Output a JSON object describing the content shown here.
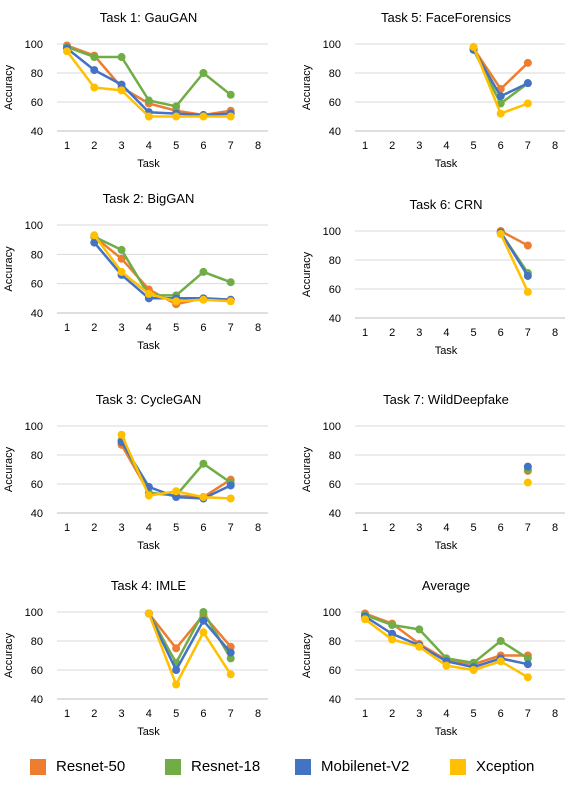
{
  "colors": {
    "Resnet-50": "#ED7D31",
    "Resnet-18": "#70AD47",
    "Mobilenet-V2": "#4472C4",
    "Xception": "#FFC000",
    "grid": "#d9d9d9",
    "axis": "#bfbfbf"
  },
  "legend": [
    "Resnet-50",
    "Resnet-18",
    "Mobilenet-V2",
    "Xception"
  ],
  "chart_data": [
    {
      "type": "line",
      "title": "Task 1: GauGAN",
      "xlabel": "Task",
      "ylabel": "Accuracy",
      "x": [
        1,
        2,
        3,
        4,
        5,
        6,
        7,
        8
      ],
      "ylim": [
        40,
        100
      ],
      "yticks": [
        40,
        60,
        80,
        100
      ],
      "grid": "horizontal",
      "series": [
        {
          "name": "Resnet-50",
          "values": [
            99,
            92,
            70,
            59,
            54,
            51,
            54,
            null
          ]
        },
        {
          "name": "Resnet-18",
          "values": [
            98,
            91,
            91,
            61,
            57,
            80,
            65,
            null
          ]
        },
        {
          "name": "Mobilenet-V2",
          "values": [
            97,
            82,
            72,
            53,
            52,
            51,
            52,
            null
          ]
        },
        {
          "name": "Xception",
          "values": [
            95,
            70,
            68,
            50,
            50,
            50,
            50,
            null
          ]
        }
      ]
    },
    {
      "type": "line",
      "title": "Task 5: FaceForensics",
      "xlabel": "Task",
      "ylabel": "Accuracy",
      "x": [
        1,
        2,
        3,
        4,
        5,
        6,
        7,
        8
      ],
      "ylim": [
        40,
        100
      ],
      "yticks": [
        40,
        60,
        80,
        100
      ],
      "grid": "horizontal",
      "series": [
        {
          "name": "Resnet-50",
          "values": [
            null,
            null,
            null,
            null,
            97,
            69,
            87,
            null
          ]
        },
        {
          "name": "Resnet-18",
          "values": [
            null,
            null,
            null,
            null,
            96,
            59,
            73,
            null
          ]
        },
        {
          "name": "Mobilenet-V2",
          "values": [
            null,
            null,
            null,
            null,
            96,
            64,
            73,
            null
          ]
        },
        {
          "name": "Xception",
          "values": [
            null,
            null,
            null,
            null,
            98,
            52,
            59,
            null
          ]
        }
      ]
    },
    {
      "type": "line",
      "title": "Task 2: BigGAN",
      "xlabel": "Task",
      "ylabel": "Accuracy",
      "x": [
        1,
        2,
        3,
        4,
        5,
        6,
        7,
        8
      ],
      "ylim": [
        40,
        100
      ],
      "yticks": [
        40,
        60,
        80,
        100
      ],
      "grid": "horizontal",
      "series": [
        {
          "name": "Resnet-50",
          "values": [
            null,
            92,
            77,
            56,
            46,
            50,
            49,
            null
          ]
        },
        {
          "name": "Resnet-18",
          "values": [
            null,
            92,
            83,
            52,
            52,
            68,
            61,
            null
          ]
        },
        {
          "name": "Mobilenet-V2",
          "values": [
            null,
            88,
            66,
            50,
            50,
            50,
            49,
            null
          ]
        },
        {
          "name": "Xception",
          "values": [
            null,
            93,
            68,
            53,
            48,
            49,
            48,
            null
          ]
        }
      ]
    },
    {
      "type": "line",
      "title": "Task 6: CRN",
      "xlabel": "Task",
      "ylabel": "Accuracy",
      "x": [
        1,
        2,
        3,
        4,
        5,
        6,
        7,
        8
      ],
      "ylim": [
        40,
        100
      ],
      "yticks": [
        40,
        60,
        80,
        100
      ],
      "grid": "horizontal",
      "series": [
        {
          "name": "Resnet-50",
          "values": [
            null,
            null,
            null,
            null,
            null,
            100,
            90,
            null
          ]
        },
        {
          "name": "Resnet-18",
          "values": [
            null,
            null,
            null,
            null,
            null,
            99,
            71,
            null
          ]
        },
        {
          "name": "Mobilenet-V2",
          "values": [
            null,
            null,
            null,
            null,
            null,
            99,
            69,
            null
          ]
        },
        {
          "name": "Xception",
          "values": [
            null,
            null,
            null,
            null,
            null,
            98,
            58,
            null
          ]
        }
      ]
    },
    {
      "type": "line",
      "title": "Task 3: CycleGAN",
      "xlabel": "Task",
      "ylabel": "Accuracy",
      "x": [
        1,
        2,
        3,
        4,
        5,
        6,
        7,
        8
      ],
      "ylim": [
        40,
        100
      ],
      "yticks": [
        40,
        60,
        80,
        100
      ],
      "grid": "horizontal",
      "series": [
        {
          "name": "Resnet-50",
          "values": [
            null,
            null,
            87,
            54,
            52,
            51,
            63,
            null
          ]
        },
        {
          "name": "Resnet-18",
          "values": [
            null,
            null,
            90,
            54,
            52,
            74,
            61,
            null
          ]
        },
        {
          "name": "Mobilenet-V2",
          "values": [
            null,
            null,
            89,
            58,
            51,
            50,
            59,
            null
          ]
        },
        {
          "name": "Xception",
          "values": [
            null,
            null,
            94,
            52,
            55,
            51,
            50,
            null
          ]
        }
      ]
    },
    {
      "type": "line",
      "title": "Task 7: WildDeepfake",
      "xlabel": "Task",
      "ylabel": "Accuracy",
      "x": [
        1,
        2,
        3,
        4,
        5,
        6,
        7,
        8
      ],
      "ylim": [
        40,
        100
      ],
      "yticks": [
        40,
        60,
        80,
        100
      ],
      "grid": "horizontal",
      "series": [
        {
          "name": "Resnet-50",
          "values": [
            null,
            null,
            null,
            null,
            null,
            null,
            69,
            null
          ]
        },
        {
          "name": "Resnet-18",
          "values": [
            null,
            null,
            null,
            null,
            null,
            null,
            70,
            null
          ]
        },
        {
          "name": "Mobilenet-V2",
          "values": [
            null,
            null,
            null,
            null,
            null,
            null,
            72,
            null
          ]
        },
        {
          "name": "Xception",
          "values": [
            null,
            null,
            null,
            null,
            null,
            null,
            61,
            null
          ]
        }
      ]
    },
    {
      "type": "line",
      "title": "Task 4: IMLE",
      "xlabel": "Task",
      "ylabel": "Accuracy",
      "x": [
        1,
        2,
        3,
        4,
        5,
        6,
        7,
        8
      ],
      "ylim": [
        40,
        100
      ],
      "yticks": [
        40,
        60,
        80,
        100
      ],
      "grid": "horizontal",
      "series": [
        {
          "name": "Resnet-50",
          "values": [
            null,
            null,
            null,
            99,
            75,
            98,
            76,
            null
          ]
        },
        {
          "name": "Resnet-18",
          "values": [
            null,
            null,
            null,
            99,
            65,
            100,
            68,
            null
          ]
        },
        {
          "name": "Mobilenet-V2",
          "values": [
            null,
            null,
            null,
            99,
            60,
            94,
            72,
            null
          ]
        },
        {
          "name": "Xception",
          "values": [
            null,
            null,
            null,
            99,
            50,
            86,
            57,
            null
          ]
        }
      ]
    },
    {
      "type": "line",
      "title": "Average",
      "xlabel": "Task",
      "ylabel": "Accuracy",
      "x": [
        1,
        2,
        3,
        4,
        5,
        6,
        7,
        8
      ],
      "ylim": [
        40,
        100
      ],
      "yticks": [
        40,
        60,
        80,
        100
      ],
      "grid": "horizontal",
      "series": [
        {
          "name": "Resnet-50",
          "values": [
            99,
            92,
            78,
            67,
            64,
            70,
            70,
            null
          ]
        },
        {
          "name": "Resnet-18",
          "values": [
            98,
            91,
            88,
            68,
            65,
            80,
            68,
            null
          ]
        },
        {
          "name": "Mobilenet-V2",
          "values": [
            97,
            85,
            77,
            66,
            62,
            68,
            64,
            null
          ]
        },
        {
          "name": "Xception",
          "values": [
            95,
            81,
            76,
            63,
            60,
            66,
            55,
            null
          ]
        }
      ]
    }
  ]
}
